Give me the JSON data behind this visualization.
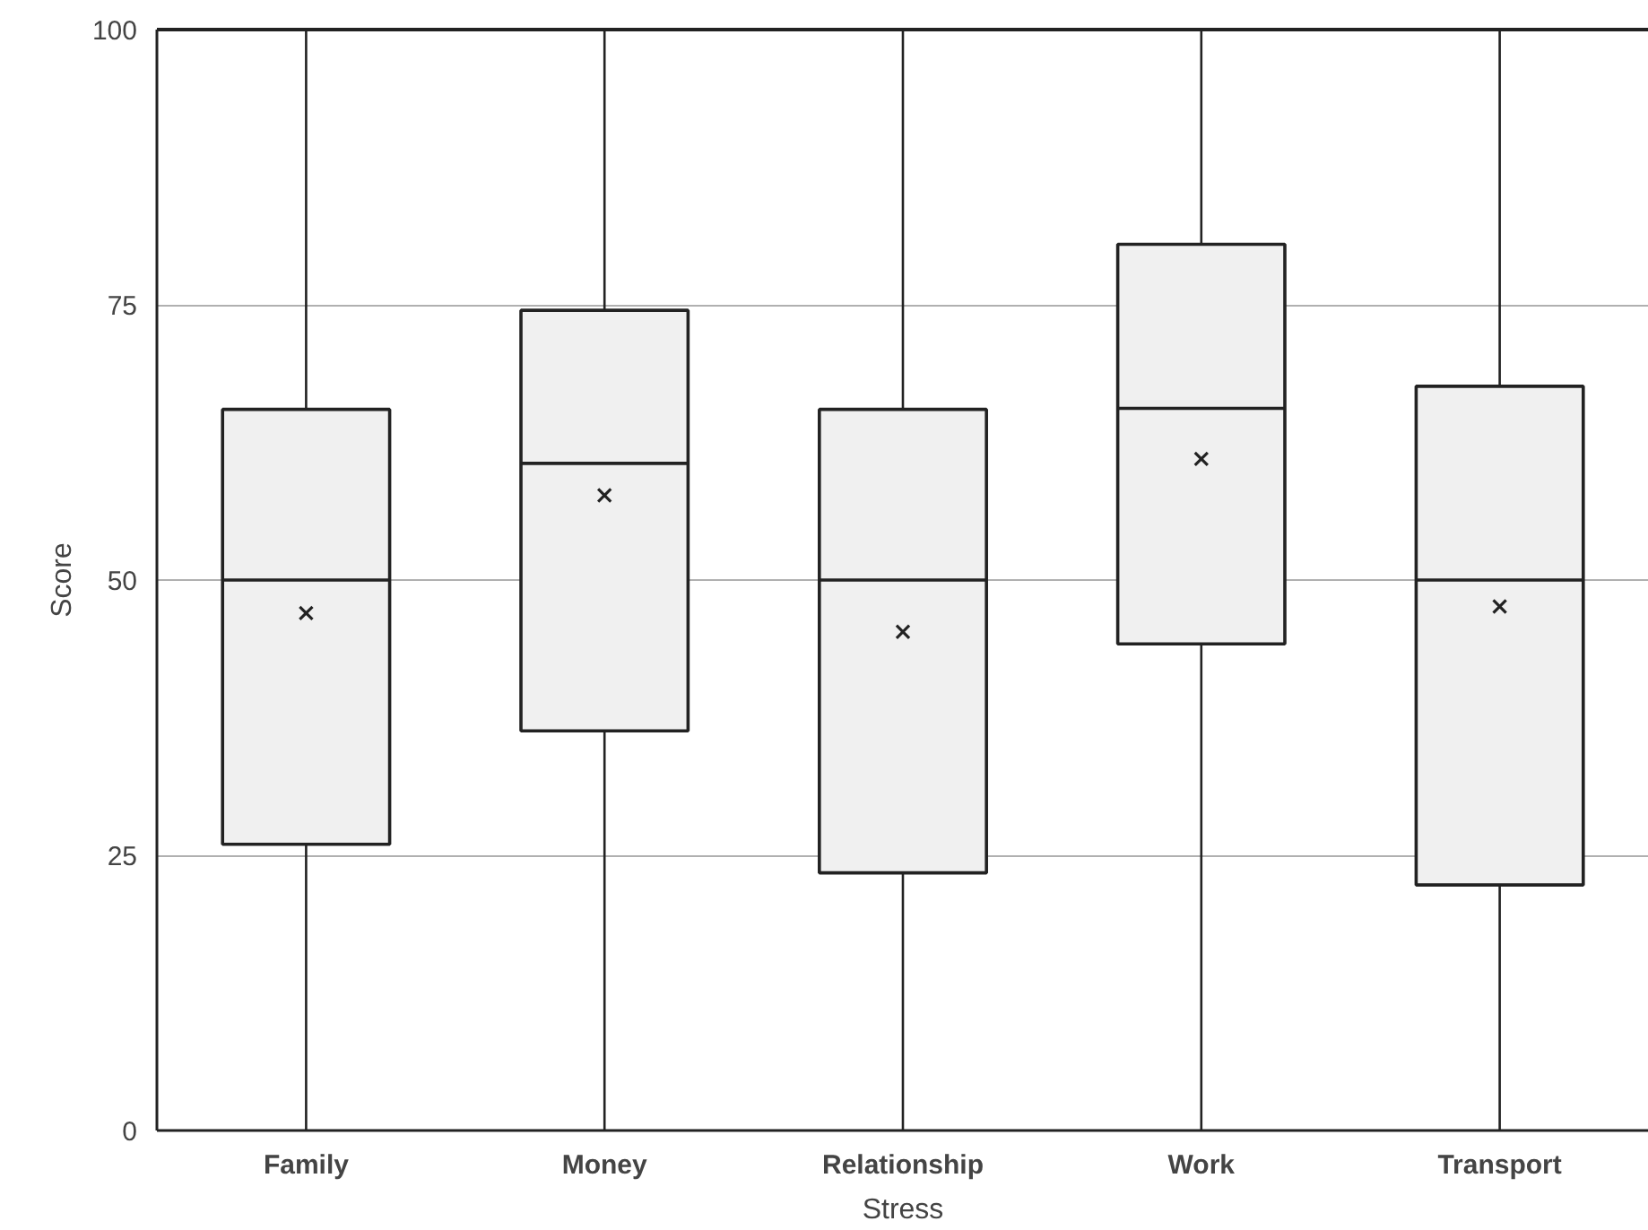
{
  "chart_data": {
    "type": "box",
    "xlabel": "Stress",
    "ylabel": "Score",
    "categories": [
      "Family",
      "Money",
      "Relationship",
      "Work",
      "Transport"
    ],
    "boxes": [
      {
        "low": 0,
        "q1": 26,
        "median": 50,
        "q3": 65.5,
        "high": 100,
        "mean": 47
      },
      {
        "low": 0,
        "q1": 36.3,
        "median": 60.6,
        "q3": 74.5,
        "high": 100,
        "mean": 57.7
      },
      {
        "low": 0,
        "q1": 23.4,
        "median": 50,
        "q3": 65.5,
        "high": 100,
        "mean": 45.3
      },
      {
        "low": 0,
        "q1": 44.2,
        "median": 65.6,
        "q3": 80.5,
        "high": 100,
        "mean": 61
      },
      {
        "low": 0,
        "q1": 22.3,
        "median": 50,
        "q3": 67.6,
        "high": 100,
        "mean": 47.6
      }
    ],
    "color": "#f0f0f0",
    "ylim": [
      0,
      100
    ],
    "yticks": [
      0,
      25,
      50,
      75,
      100
    ],
    "grid": "y",
    "marker": "cross"
  }
}
